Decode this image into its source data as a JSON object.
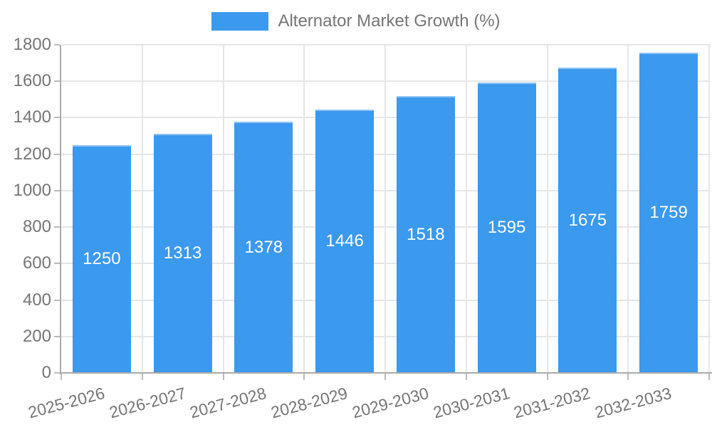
{
  "legend": {
    "label": "Alternator Market Growth (%)"
  },
  "chart_data": {
    "type": "bar",
    "title": "Alternator Market Growth (%)",
    "categories": [
      "2025-2026",
      "2026-2027",
      "2027-2028",
      "2028-2029",
      "2029-2030",
      "2030-2031",
      "2031-2032",
      "2032-2033"
    ],
    "values": [
      1250,
      1313,
      1378,
      1446,
      1518,
      1595,
      1675,
      1759
    ],
    "value_labels": [
      "1250",
      "1313",
      "1378",
      "1446",
      "1518",
      "1595",
      "1675",
      "1759"
    ],
    "xlabel": "",
    "ylabel": "",
    "ylim": [
      0,
      1800
    ],
    "yticks": [
      0,
      200,
      400,
      600,
      800,
      1000,
      1200,
      1400,
      1600,
      1800
    ],
    "grid": true,
    "legend_position": "top-center",
    "colors": {
      "bar": "#3b99ee",
      "bar_top_edge": "#8ec2f2",
      "text": "#757575",
      "grid": "#e6e6e6",
      "axis": "#a9a9a9",
      "tick": "#bcbcbc",
      "value_label": "#ffffff",
      "background": "#ffffff"
    }
  }
}
